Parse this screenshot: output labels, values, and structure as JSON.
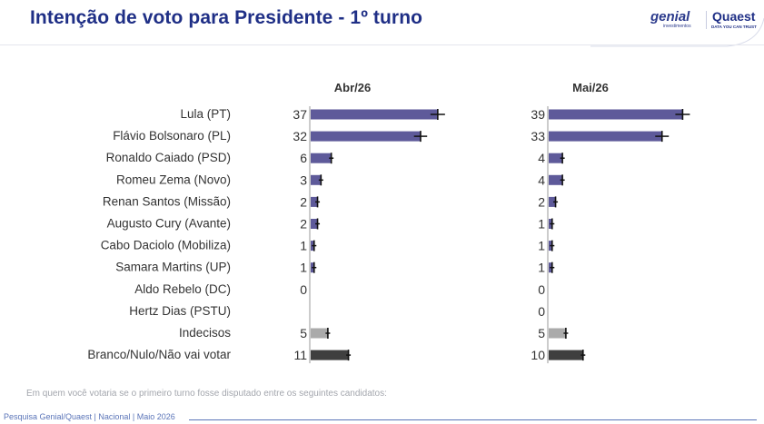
{
  "header": {
    "title": "Intenção de voto para Presidente - 1º turno",
    "logo_genial": "genial",
    "logo_genial_sub": "investimentos",
    "logo_quaest": "Quaest",
    "logo_quaest_sub": "DATA YOU CAN TRUST"
  },
  "chart_data": {
    "type": "bar",
    "orientation": "horizontal",
    "categories": [
      "Lula (PT)",
      "Flávio Bolsonaro (PL)",
      "Ronaldo Caiado (PSD)",
      "Romeu Zema (Novo)",
      "Renan Santos (Missão)",
      "Augusto Cury (Avante)",
      "Cabo Daciolo (Mobiliza)",
      "Samara Martins (UP)",
      "Aldo Rebelo (DC)",
      "Hertz Dias (PSTU)",
      "Indecisos",
      "Branco/Nulo/Não vai votar"
    ],
    "series": [
      {
        "name": "Abr/26",
        "values": [
          37,
          32,
          6,
          3,
          2,
          2,
          1,
          1,
          0,
          null,
          5,
          11
        ],
        "labels": [
          "37",
          "32",
          "6",
          "3",
          "2",
          "2",
          "1",
          "1",
          "0",
          "",
          "5",
          "11"
        ]
      },
      {
        "name": "Mai/26",
        "values": [
          39,
          33,
          4,
          4,
          2,
          1,
          1,
          1,
          0,
          0,
          5,
          10
        ],
        "labels": [
          "39",
          "33",
          "4",
          "4",
          "2",
          "1",
          "1",
          "1",
          "0",
          "0",
          "5",
          "10"
        ]
      }
    ],
    "bar_colors": [
      "#5e5a9a",
      "#5e5a9a",
      "#5e5a9a",
      "#5e5a9a",
      "#5e5a9a",
      "#5e5a9a",
      "#5e5a9a",
      "#5e5a9a",
      "#5e5a9a",
      "#5e5a9a",
      "#aaaaaa",
      "#3f3f3f"
    ],
    "error_bars": true,
    "xlim": [
      0,
      45
    ],
    "grid": false,
    "legend": "none"
  },
  "footnote": "Em quem você votaria se o primeiro turno fosse disputado entre os seguintes candidatos:",
  "footer": "Pesquisa Genial/Quaest | Nacional | Maio 2026"
}
